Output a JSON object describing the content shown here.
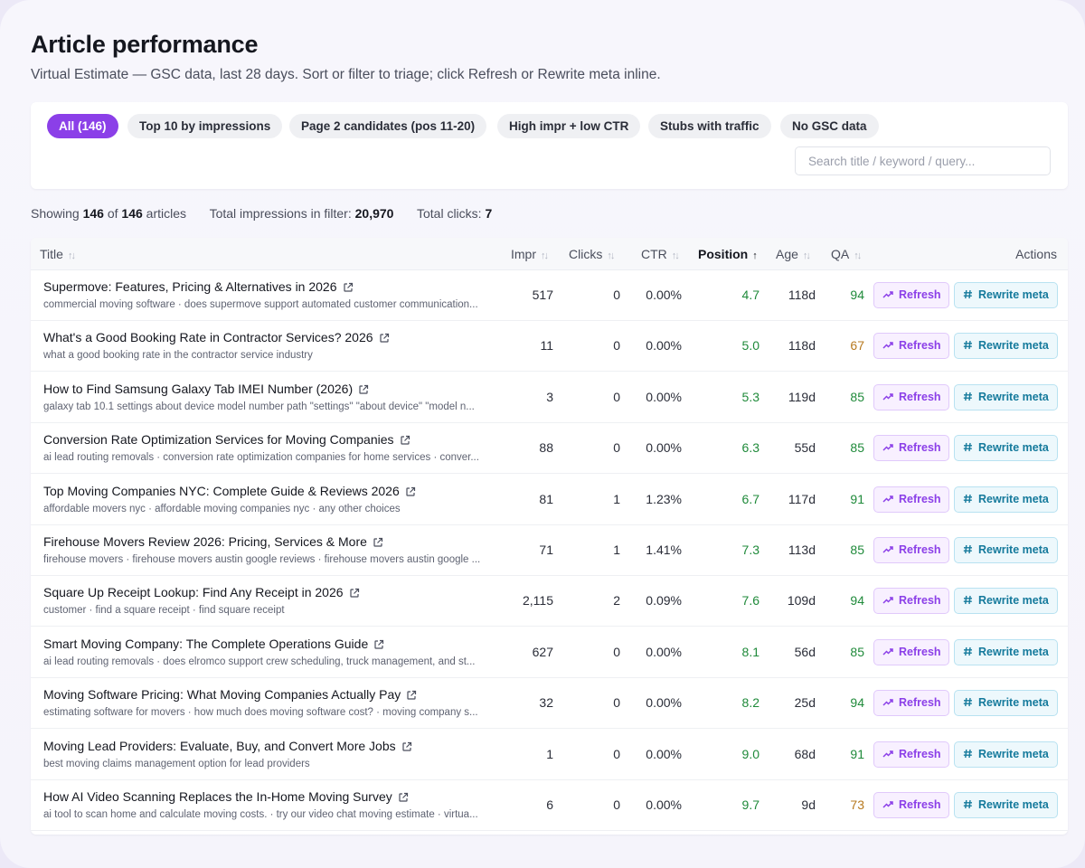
{
  "header": {
    "title": "Article performance",
    "subtitle": "Virtual Estimate — GSC data, last 28 days. Sort or filter to triage; click Refresh or Rewrite meta inline."
  },
  "filters": {
    "chips": [
      "All (146)",
      "Top 10 by impressions",
      "Page 2 candidates (pos 11-20)",
      "High impr + low CTR",
      "Stubs with traffic",
      "No GSC data"
    ],
    "active_chip": "All (146)",
    "search_placeholder": "Search title / keyword / query..."
  },
  "summary": {
    "showing_label": "Showing",
    "showing_count": "146",
    "of_label": "of",
    "total_count": "146",
    "articles_label": "articles",
    "impressions_label": "Total impressions in filter:",
    "impressions_value": "20,970",
    "clicks_label": "Total clicks:",
    "clicks_value": "7"
  },
  "table": {
    "columns": {
      "title": "Title",
      "impr": "Impr",
      "clicks": "Clicks",
      "ctr": "CTR",
      "position": "Position",
      "age": "Age",
      "qa": "QA",
      "actions": "Actions"
    },
    "sorted_column": "Position",
    "sort_direction": "ascending",
    "refresh_label": "Refresh",
    "rewrite_label": "Rewrite meta",
    "rows": [
      {
        "title": "Supermove: Features, Pricing & Alternatives in 2026",
        "keywords": "commercial moving software · does supermove support automated customer communication...",
        "impr": "517",
        "clicks": "0",
        "ctr": "0.00%",
        "position": "4.7",
        "age": "118d",
        "qa": "94"
      },
      {
        "title": "What's a Good Booking Rate in Contractor Services? 2026",
        "keywords": "what a good booking rate in the contractor service industry",
        "impr": "11",
        "clicks": "0",
        "ctr": "0.00%",
        "position": "5.0",
        "age": "118d",
        "qa": "67"
      },
      {
        "title": "How to Find Samsung Galaxy Tab IMEI Number (2026)",
        "keywords": "galaxy tab 10.1 settings about device model number path \"settings\" \"about device\" \"model n...",
        "impr": "3",
        "clicks": "0",
        "ctr": "0.00%",
        "position": "5.3",
        "age": "119d",
        "qa": "85"
      },
      {
        "title": "Conversion Rate Optimization Services for Moving Companies",
        "keywords": "ai lead routing removals · conversion rate optimization companies for home services · conver...",
        "impr": "88",
        "clicks": "0",
        "ctr": "0.00%",
        "position": "6.3",
        "age": "55d",
        "qa": "85"
      },
      {
        "title": "Top Moving Companies NYC: Complete Guide & Reviews 2026",
        "keywords": "affordable movers nyc · affordable moving companies nyc · any other choices",
        "impr": "81",
        "clicks": "1",
        "ctr": "1.23%",
        "position": "6.7",
        "age": "117d",
        "qa": "91"
      },
      {
        "title": "Firehouse Movers Review 2026: Pricing, Services & More",
        "keywords": "firehouse movers · firehouse movers austin google reviews · firehouse movers austin google ...",
        "impr": "71",
        "clicks": "1",
        "ctr": "1.41%",
        "position": "7.3",
        "age": "113d",
        "qa": "85"
      },
      {
        "title": "Square Up Receipt Lookup: Find Any Receipt in 2026",
        "keywords": "customer · find a square receipt · find square receipt",
        "impr": "2,115",
        "clicks": "2",
        "ctr": "0.09%",
        "position": "7.6",
        "age": "109d",
        "qa": "94"
      },
      {
        "title": "Smart Moving Company: The Complete Operations Guide",
        "keywords": "ai lead routing removals · does elromco support crew scheduling, truck management, and st...",
        "impr": "627",
        "clicks": "0",
        "ctr": "0.00%",
        "position": "8.1",
        "age": "56d",
        "qa": "85"
      },
      {
        "title": "Moving Software Pricing: What Moving Companies Actually Pay",
        "keywords": "estimating software for movers · how much does moving software cost? · moving company s...",
        "impr": "32",
        "clicks": "0",
        "ctr": "0.00%",
        "position": "8.2",
        "age": "25d",
        "qa": "94"
      },
      {
        "title": "Moving Lead Providers: Evaluate, Buy, and Convert More Jobs",
        "keywords": "best moving claims management option for lead providers",
        "impr": "1",
        "clicks": "0",
        "ctr": "0.00%",
        "position": "9.0",
        "age": "68d",
        "qa": "91"
      },
      {
        "title": "How AI Video Scanning Replaces the In-Home Moving Survey",
        "keywords": "ai tool to scan home and calculate moving costs. · try our video chat moving estimate · virtua...",
        "impr": "6",
        "clicks": "0",
        "ctr": "0.00%",
        "position": "9.7",
        "age": "9d",
        "qa": "73"
      }
    ]
  },
  "colors": {
    "accent": "#8b3fe8",
    "rewrite": "#157a9c",
    "good": "#1f8a3a",
    "warn": "#b7791f"
  }
}
